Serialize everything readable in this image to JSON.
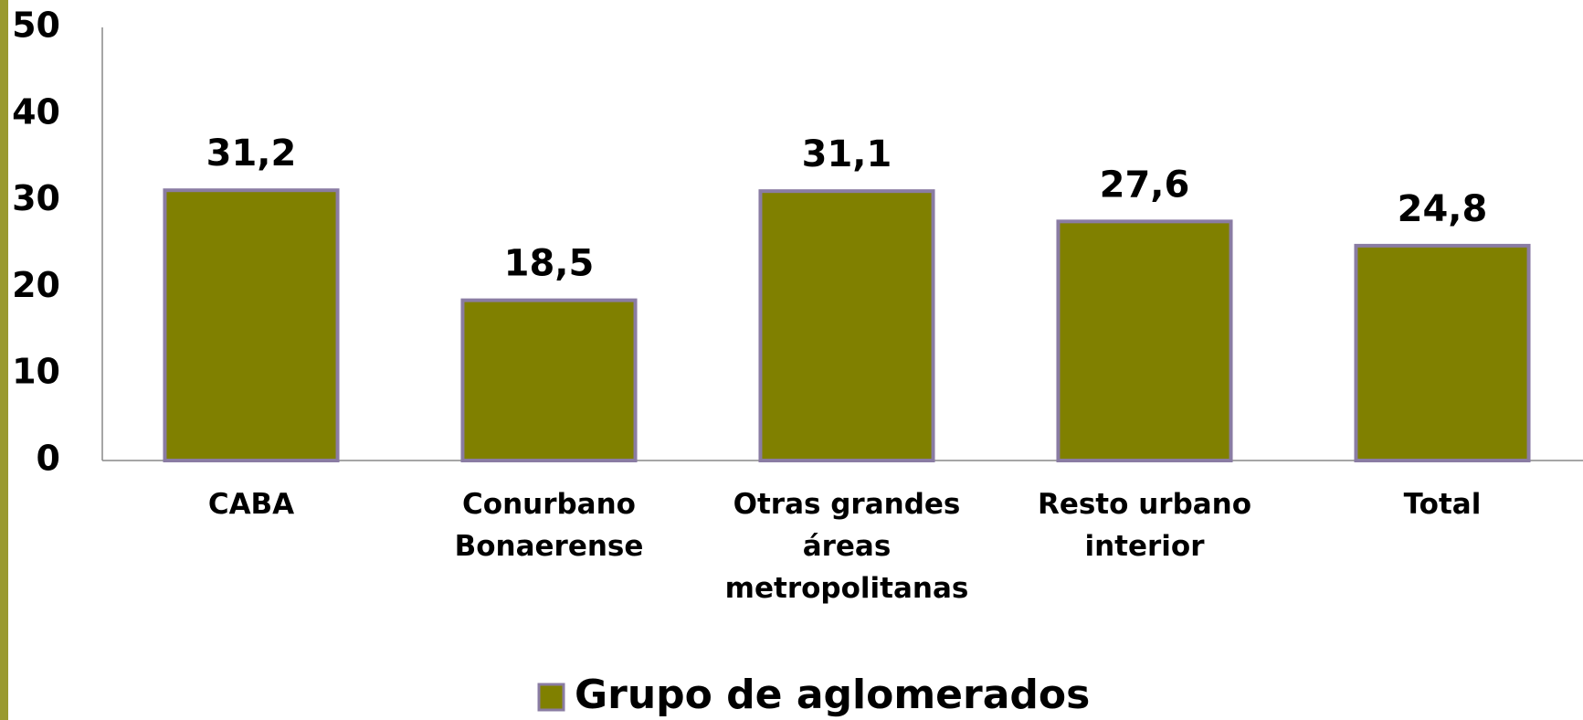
{
  "chart_data": {
    "type": "bar",
    "categories": [
      "CABA",
      "Conurbano Bonaerense",
      "Otras grandes áreas metropolitanas",
      "Resto urbano interior",
      "Total"
    ],
    "series": [
      {
        "name": "Grupo de aglomerados",
        "color": "#808000",
        "values": [
          31.2,
          18.5,
          31.1,
          27.6,
          24.8
        ],
        "value_labels": [
          "31,2",
          "18,5",
          "31,1",
          "27,6",
          "24,8"
        ]
      }
    ],
    "ylim": [
      0,
      50
    ],
    "yticks": [
      0,
      10,
      20,
      30,
      40,
      50
    ],
    "grid": false,
    "legend": "bottom"
  }
}
